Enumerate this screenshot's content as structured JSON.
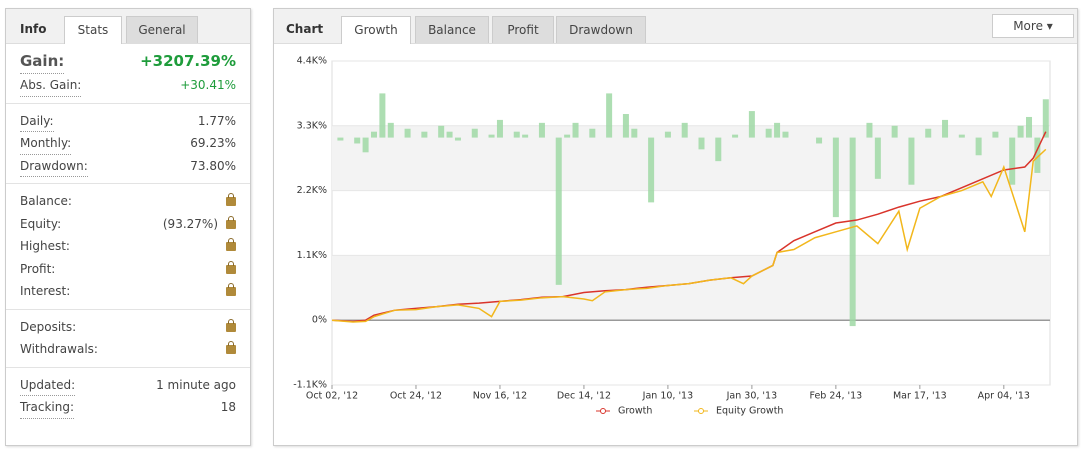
{
  "info": {
    "tabs": [
      "Info",
      "Stats",
      "General"
    ],
    "gain": {
      "label": "Gain:",
      "value": "+3207.39%"
    },
    "abs_gain": {
      "label": "Abs. Gain:",
      "value": "+30.41%"
    },
    "groups": [
      [
        {
          "label": "Daily:",
          "value": "1.77%"
        },
        {
          "label": "Monthly:",
          "value": "69.23%"
        },
        {
          "label": "Drawdown:",
          "value": "73.80%"
        }
      ],
      [
        {
          "label": "Balance:",
          "locked": true
        },
        {
          "label": "Equity:",
          "value": "(93.27%)",
          "locked": true
        },
        {
          "label": "Highest:",
          "locked": true
        },
        {
          "label": "Profit:",
          "locked": true
        },
        {
          "label": "Interest:",
          "locked": true
        }
      ],
      [
        {
          "label": "Deposits:",
          "locked": true
        },
        {
          "label": "Withdrawals:",
          "locked": true
        }
      ],
      [
        {
          "label": "Updated:",
          "value": "1 minute ago"
        },
        {
          "label": "Tracking:",
          "value": "18"
        }
      ]
    ]
  },
  "chart_panel": {
    "title": "Chart",
    "tabs": [
      "Growth",
      "Balance",
      "Profit",
      "Drawdown"
    ],
    "more": "More"
  },
  "chart_data": {
    "type": "line",
    "xlim": [
      0,
      171
    ],
    "xticks": [
      {
        "value": 0,
        "label": "Oct 02, '12"
      },
      {
        "value": 20,
        "label": "Oct 24, '12"
      },
      {
        "value": 40,
        "label": "Nov 16, '12"
      },
      {
        "value": 60,
        "label": "Dec 14, '12"
      },
      {
        "value": 80,
        "label": "Jan 10, '13"
      },
      {
        "value": 100,
        "label": "Jan 30, '13"
      },
      {
        "value": 120,
        "label": "Feb 24, '13"
      },
      {
        "value": 140,
        "label": "Mar 17, '13"
      },
      {
        "value": 160,
        "label": "Apr 04, '13"
      }
    ],
    "ylim": [
      -1100,
      4400
    ],
    "yticks": [
      {
        "value": -1100,
        "label": "-1.1K%"
      },
      {
        "value": 0,
        "label": "0%"
      },
      {
        "value": 1100,
        "label": "1.1K%"
      },
      {
        "value": 2200,
        "label": "2.2K%"
      },
      {
        "value": 3300,
        "label": "3.3K%"
      },
      {
        "value": 4400,
        "label": "4.4K%"
      }
    ],
    "series": [
      {
        "name": "Growth",
        "color": "#d9342b",
        "x": [
          0,
          5,
          8,
          10,
          15,
          20,
          25,
          30,
          35,
          40,
          45,
          50,
          55,
          60,
          65,
          70,
          75,
          80,
          85,
          90,
          95,
          100,
          105,
          106,
          110,
          115,
          120,
          125,
          130,
          135,
          140,
          145,
          150,
          155,
          160,
          165,
          167,
          170
        ],
        "values": [
          0,
          -20,
          0,
          85,
          170,
          200,
          230,
          270,
          290,
          320,
          350,
          390,
          400,
          470,
          500,
          520,
          560,
          590,
          620,
          680,
          720,
          750,
          930,
          1150,
          1350,
          1500,
          1650,
          1700,
          1800,
          1920,
          2020,
          2100,
          2250,
          2400,
          2550,
          2600,
          2750,
          3200
        ]
      },
      {
        "name": "Equity Growth",
        "color": "#f2b71c",
        "x": [
          0,
          5,
          8,
          10,
          15,
          20,
          25,
          30,
          35,
          38,
          40,
          45,
          50,
          55,
          60,
          62,
          65,
          70,
          75,
          80,
          85,
          90,
          95,
          98,
          100,
          105,
          106,
          110,
          115,
          120,
          125,
          130,
          135,
          137,
          140,
          145,
          150,
          155,
          157,
          160,
          165,
          167,
          170
        ],
        "values": [
          0,
          -30,
          -20,
          60,
          170,
          180,
          230,
          260,
          200,
          60,
          320,
          340,
          380,
          400,
          360,
          330,
          480,
          520,
          540,
          590,
          620,
          680,
          720,
          620,
          750,
          930,
          1150,
          1200,
          1400,
          1500,
          1600,
          1300,
          1850,
          1200,
          1900,
          2100,
          2200,
          2350,
          2100,
          2600,
          1500,
          2700,
          2900
        ]
      },
      {
        "type": "bar",
        "color": "#9fd8a4",
        "base": 3100,
        "x": [
          2,
          6,
          8,
          10,
          12,
          14,
          18,
          22,
          26,
          28,
          30,
          34,
          38,
          40,
          44,
          46,
          50,
          54,
          56,
          58,
          62,
          66,
          70,
          72,
          76,
          80,
          84,
          88,
          92,
          96,
          100,
          102,
          104,
          106,
          108,
          112,
          116,
          120,
          124,
          128,
          130,
          134,
          138,
          142,
          146,
          150,
          154,
          158,
          162,
          164,
          166,
          168,
          170
        ],
        "values": [
          3050,
          3000,
          2850,
          3200,
          3850,
          3350,
          3250,
          3200,
          3300,
          3200,
          3050,
          3250,
          3150,
          3400,
          3200,
          3150,
          3350,
          600,
          3150,
          3350,
          3250,
          3850,
          3500,
          3250,
          2000,
          3200,
          3350,
          2900,
          2700,
          3150,
          3550,
          3100,
          3250,
          3350,
          3200,
          3100,
          3000,
          1750,
          -100,
          3350,
          2400,
          3300,
          2300,
          3250,
          3400,
          3150,
          2800,
          3200,
          2300,
          3300,
          3450,
          2500,
          3750
        ]
      }
    ],
    "grid": true
  }
}
